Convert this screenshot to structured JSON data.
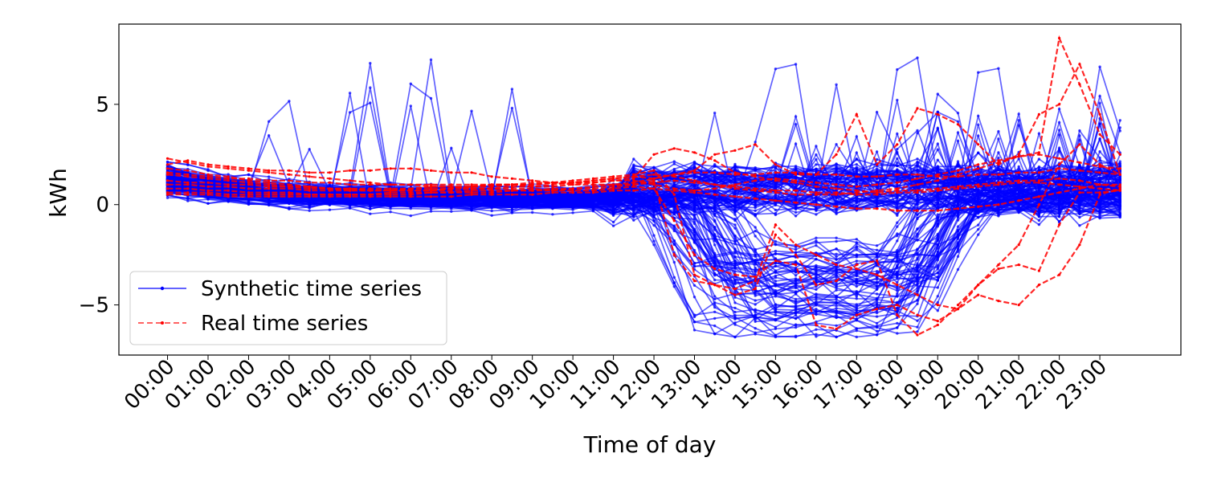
{
  "chart_data": {
    "type": "line",
    "title": "",
    "xlabel": "Time of day",
    "ylabel": "kWh",
    "x_tick_labels": [
      "00:00",
      "01:00",
      "02:00",
      "03:00",
      "04:00",
      "05:00",
      "06:00",
      "07:00",
      "08:00",
      "09:00",
      "10:00",
      "11:00",
      "12:00",
      "13:00",
      "14:00",
      "15:00",
      "16:00",
      "17:00",
      "18:00",
      "19:00",
      "20:00",
      "21:00",
      "22:00",
      "23:00"
    ],
    "y_ticks": [
      -5,
      0,
      5
    ],
    "y_tick_labels": [
      "−5",
      "0",
      "5"
    ],
    "xlim_hours": [
      -1.2,
      25.0
    ],
    "ylim": [
      -7.5,
      9.0
    ],
    "grid": false,
    "legend_position": "lower left",
    "legend": [
      {
        "label": "Synthetic time series",
        "color": "#0000ff",
        "style": "solid",
        "marker": "dot"
      },
      {
        "label": "Real time series",
        "color": "#ff0000",
        "style": "dashed",
        "marker": "dot"
      }
    ],
    "sampling": "30-minute intervals, 48 points per day",
    "series": [
      {
        "group": "Real time series",
        "values": [
          2.3,
          2.1,
          1.9,
          1.8,
          1.7,
          1.6,
          1.5,
          1.4,
          1.3,
          1.2,
          1.1,
          1.0,
          1.0,
          0.9,
          0.9,
          0.8,
          0.8,
          0.8,
          0.8,
          0.7,
          0.7,
          0.7,
          0.8,
          0.9,
          0.8,
          -0.8,
          -2.5,
          -3.2,
          -3.5,
          -3.6,
          -2.8,
          -3.0,
          -6.0,
          -6.2,
          -5.5,
          -5.2,
          -5.0,
          -5.5,
          -5.8,
          -5.2,
          -4.5,
          -4.8,
          -5.0,
          -4.0,
          -3.5,
          -2.0,
          0.5,
          0.8
        ]
      },
      {
        "group": "Real time series",
        "values": [
          2.0,
          2.2,
          2.0,
          1.9,
          1.8,
          1.7,
          1.7,
          1.6,
          1.6,
          1.7,
          1.7,
          1.8,
          1.8,
          1.7,
          1.6,
          1.6,
          1.4,
          1.3,
          1.2,
          1.1,
          1.0,
          1.0,
          1.0,
          1.1,
          1.3,
          1.5,
          1.6,
          1.6,
          1.5,
          1.5,
          1.6,
          1.6,
          1.5,
          1.5,
          1.4,
          1.4,
          1.5,
          1.5,
          1.4,
          1.4,
          1.5,
          1.5,
          1.6,
          1.6,
          1.8,
          1.7,
          1.6,
          1.5
        ]
      },
      {
        "group": "Real time series",
        "values": [
          1.5,
          1.4,
          1.3,
          1.2,
          1.1,
          1.0,
          0.9,
          0.8,
          0.8,
          0.7,
          0.7,
          0.7,
          0.7,
          0.7,
          0.8,
          0.9,
          1.0,
          1.0,
          0.9,
          0.9,
          1.0,
          1.1,
          1.2,
          1.3,
          2.5,
          2.8,
          2.6,
          2.2,
          1.6,
          1.4,
          1.2,
          1.1,
          0.9,
          0.8,
          0.7,
          0.6,
          0.7,
          0.7,
          0.8,
          0.9,
          1.0,
          1.1,
          1.2,
          1.2,
          1.3,
          1.2,
          1.0,
          0.9
        ]
      },
      {
        "group": "Real time series",
        "values": [
          0.8,
          0.8,
          0.7,
          0.7,
          0.6,
          0.6,
          0.6,
          0.5,
          0.5,
          0.5,
          0.5,
          0.6,
          0.6,
          0.6,
          0.6,
          0.7,
          0.7,
          0.7,
          0.7,
          0.8,
          0.8,
          0.9,
          1.0,
          1.0,
          1.2,
          -2.5,
          -3.8,
          -4.0,
          -4.5,
          -4.2,
          -1.5,
          -2.5,
          -4.0,
          -3.8,
          -3.0,
          -2.8,
          -5.5,
          -6.5,
          -6.0,
          -5.0,
          -4.0,
          -3.2,
          -3.0,
          -3.3,
          -1.0,
          0.6,
          0.6,
          0.7
        ]
      },
      {
        "group": "Real time series",
        "values": [
          1.0,
          1.0,
          0.9,
          0.9,
          0.8,
          0.8,
          0.8,
          0.7,
          0.7,
          0.7,
          0.7,
          0.7,
          0.8,
          0.8,
          0.8,
          0.9,
          0.9,
          1.0,
          1.0,
          1.1,
          1.1,
          1.2,
          1.3,
          1.4,
          1.3,
          1.5,
          1.7,
          2.5,
          2.7,
          3.0,
          2.0,
          1.5,
          1.5,
          2.5,
          4.5,
          2.0,
          3.0,
          4.8,
          4.5,
          4.0,
          3.0,
          2.0,
          2.5,
          4.5,
          5.0,
          7.0,
          4.5,
          1.5
        ]
      },
      {
        "group": "Real time series",
        "values": [
          0.5,
          0.5,
          0.5,
          0.4,
          0.4,
          0.4,
          0.4,
          0.4,
          0.4,
          0.4,
          0.4,
          0.4,
          0.4,
          0.4,
          0.4,
          0.5,
          0.5,
          0.5,
          0.5,
          0.6,
          0.6,
          0.6,
          0.7,
          0.7,
          0.8,
          0.7,
          0.6,
          0.5,
          0.4,
          0.3,
          0.2,
          0.1,
          0.0,
          -0.1,
          -0.2,
          -0.2,
          -0.3,
          -0.3,
          -0.3,
          -0.2,
          -0.1,
          0.0,
          0.2,
          0.4,
          0.6,
          0.8,
          1.0,
          1.0
        ]
      },
      {
        "group": "Real time series",
        "values": [
          1.2,
          1.1,
          1.1,
          1.0,
          1.0,
          0.9,
          0.9,
          0.9,
          0.8,
          0.8,
          0.8,
          0.8,
          0.8,
          0.9,
          0.9,
          0.9,
          1.0,
          1.0,
          1.0,
          1.1,
          1.1,
          1.1,
          1.2,
          1.2,
          1.0,
          0.8,
          0.7,
          0.8,
          1.0,
          1.2,
          1.3,
          1.2,
          1.1,
          1.0,
          0.9,
          1.0,
          1.1,
          1.3,
          1.5,
          1.7,
          2.0,
          2.2,
          2.4,
          2.5,
          2.3,
          2.1,
          1.9,
          1.8
        ]
      },
      {
        "group": "Real time series",
        "values": [
          1.6,
          1.5,
          1.4,
          1.3,
          1.3,
          1.2,
          1.2,
          1.1,
          1.1,
          1.0,
          1.0,
          1.0,
          1.0,
          1.0,
          1.0,
          1.0,
          1.0,
          1.0,
          1.1,
          1.1,
          1.2,
          1.3,
          1.4,
          1.5,
          1.7,
          0.5,
          -3.5,
          -4.0,
          -4.2,
          -3.8,
          -1.0,
          -2.0,
          -2.5,
          -3.0,
          -3.2,
          -3.5,
          -4.0,
          -4.5,
          -5.0,
          -5.2,
          -4.0,
          -3.0,
          -2.0,
          0.0,
          2.0,
          3.0,
          2.0,
          1.5
        ]
      },
      {
        "group": "Real time series",
        "values": [
          0.6,
          0.6,
          0.6,
          0.5,
          0.5,
          0.5,
          0.5,
          0.5,
          0.5,
          0.5,
          0.5,
          0.5,
          0.5,
          0.6,
          0.6,
          0.6,
          0.6,
          0.7,
          0.7,
          0.7,
          0.8,
          0.8,
          0.9,
          1.0,
          1.1,
          1.2,
          1.1,
          1.0,
          0.9,
          0.8,
          0.7,
          0.7,
          0.6,
          0.6,
          0.5,
          0.5,
          0.6,
          0.6,
          0.7,
          0.8,
          0.9,
          1.0,
          1.1,
          1.1,
          1.0,
          0.9,
          0.8,
          0.7
        ]
      },
      {
        "group": "Real time series",
        "values": [
          1.8,
          1.7,
          1.5,
          1.4,
          1.2,
          1.1,
          1.0,
          0.9,
          0.8,
          0.8,
          0.7,
          0.7,
          0.7,
          0.7,
          0.7,
          0.8,
          0.8,
          0.9,
          0.9,
          1.0,
          1.1,
          1.2,
          1.3,
          1.4,
          1.5,
          1.4,
          1.2,
          1.0,
          0.8,
          0.7,
          0.6,
          0.5,
          0.5,
          0.5,
          0.6,
          0.7,
          0.8,
          1.0,
          1.2,
          1.5,
          1.8,
          2.1,
          2.4,
          2.6,
          8.3,
          6.0,
          3.5,
          2.5
        ]
      }
    ]
  }
}
